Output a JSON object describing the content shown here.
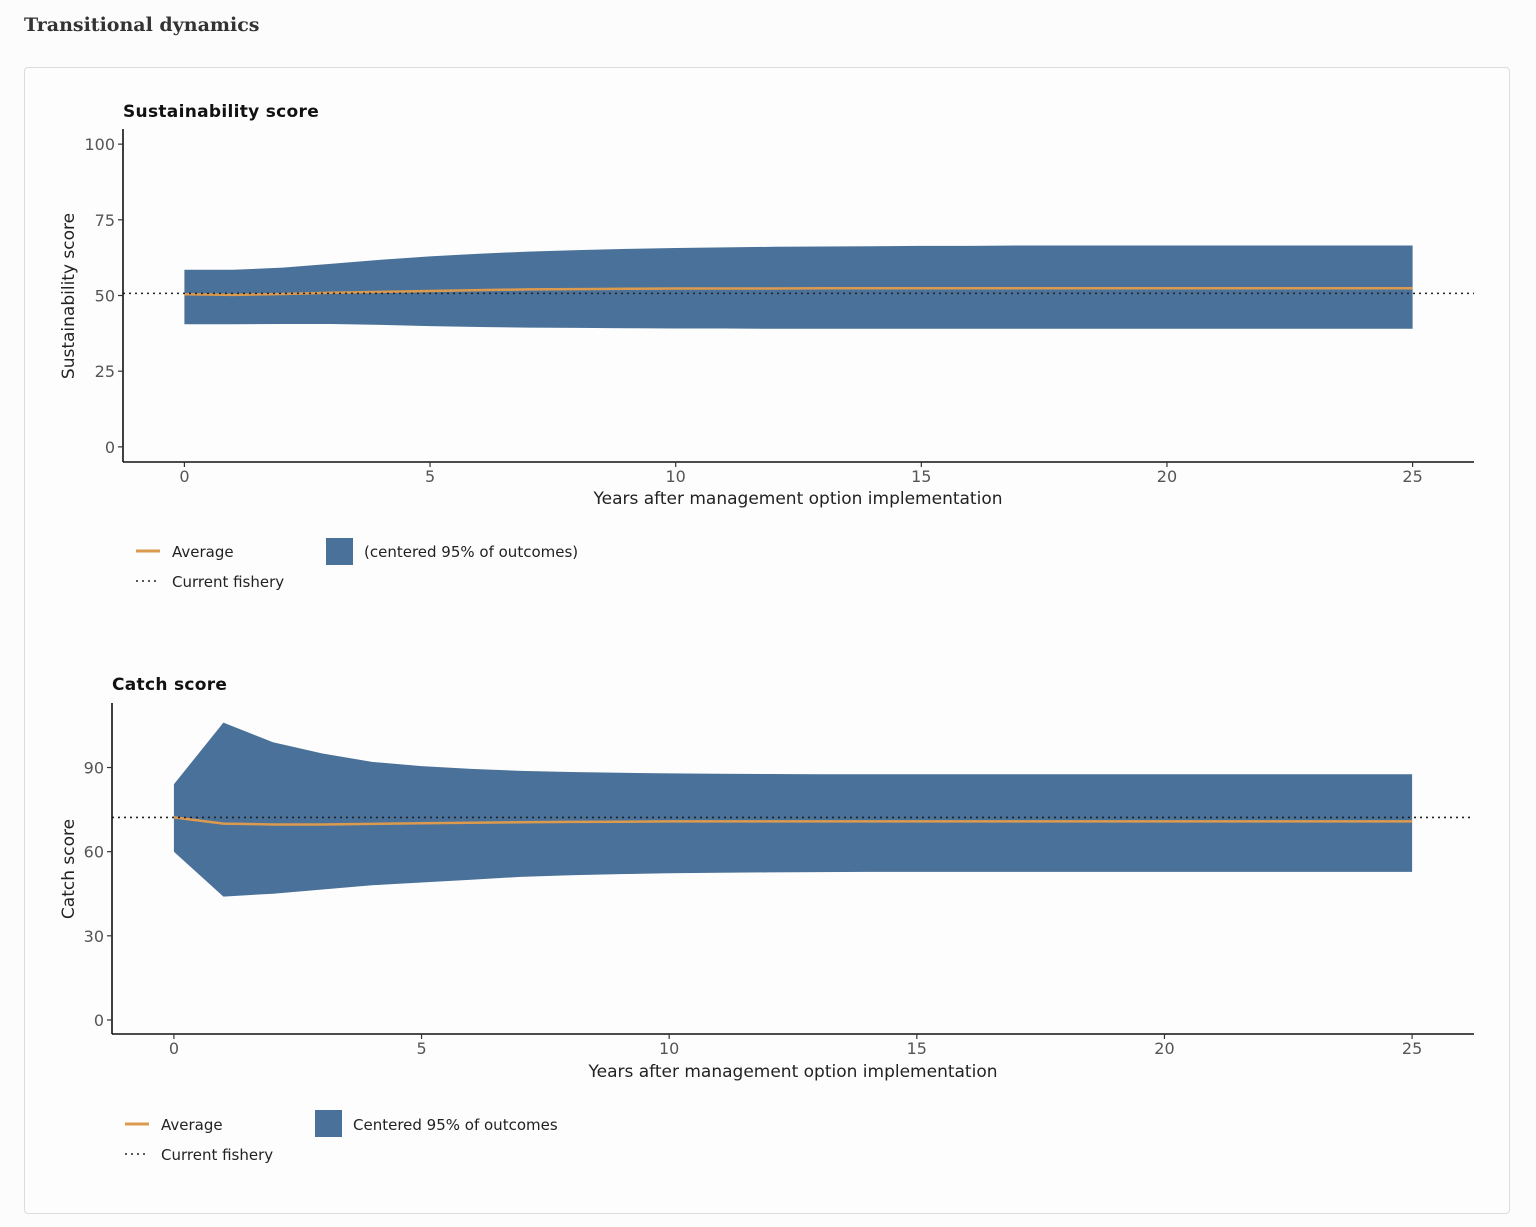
{
  "page": {
    "section_title": "Transitional dynamics"
  },
  "colors": {
    "band": "#4a7199",
    "average": "#dc9a4e",
    "current": "#222222",
    "axis": "#111111"
  },
  "chart_data": [
    {
      "type": "area",
      "title": "Sustainability score",
      "xlabel": "Years after management option implementation",
      "ylabel": "Sustainability score",
      "xlim": [
        -1.25,
        26.25
      ],
      "ylim": [
        -5,
        105
      ],
      "xticks": [
        0,
        5,
        10,
        15,
        20,
        25
      ],
      "yticks": [
        0,
        25,
        50,
        75,
        100
      ],
      "grid": false,
      "legend_position": "bottom-left",
      "x": [
        0,
        1,
        2,
        3,
        4,
        5,
        6,
        7,
        8,
        9,
        10,
        11,
        12,
        13,
        14,
        15,
        16,
        17,
        18,
        19,
        20,
        21,
        22,
        23,
        24,
        25
      ],
      "band_upper": [
        58.5,
        58.5,
        59.2,
        60.5,
        61.8,
        62.9,
        63.8,
        64.5,
        65.0,
        65.4,
        65.7,
        65.9,
        66.1,
        66.2,
        66.3,
        66.4,
        66.4,
        66.5,
        66.5,
        66.5,
        66.5,
        66.5,
        66.5,
        66.5,
        66.5,
        66.5
      ],
      "band_lower": [
        40.5,
        40.5,
        40.6,
        40.6,
        40.3,
        39.9,
        39.6,
        39.4,
        39.3,
        39.2,
        39.1,
        39.1,
        39.0,
        39.0,
        39.0,
        39.0,
        39.0,
        39.0,
        39.0,
        39.0,
        39.0,
        39.0,
        39.0,
        39.0,
        39.0,
        39.0
      ],
      "average": [
        50.4,
        50.2,
        50.5,
        50.9,
        51.2,
        51.5,
        51.8,
        52.0,
        52.1,
        52.2,
        52.3,
        52.3,
        52.3,
        52.4,
        52.4,
        52.4,
        52.4,
        52.4,
        52.4,
        52.4,
        52.4,
        52.4,
        52.4,
        52.4,
        52.4,
        52.4
      ],
      "current_fishery": 50.7,
      "series": [
        {
          "name": "Average"
        },
        {
          "name": "Current fishery"
        },
        {
          "name": "(centered 95% of outcomes)"
        }
      ]
    },
    {
      "type": "area",
      "title": "Catch score",
      "xlabel": "Years after management option implementation",
      "ylabel": "Catch score",
      "xlim": [
        -1.25,
        26.25
      ],
      "ylim": [
        -5,
        113
      ],
      "xticks": [
        0,
        5,
        10,
        15,
        20,
        25
      ],
      "yticks": [
        0,
        30,
        60,
        90
      ],
      "grid": false,
      "legend_position": "bottom-left",
      "x": [
        0,
        1,
        2,
        3,
        4,
        5,
        6,
        7,
        8,
        9,
        10,
        11,
        12,
        13,
        14,
        15,
        16,
        17,
        18,
        19,
        20,
        21,
        22,
        23,
        24,
        25
      ],
      "band_upper": [
        84,
        106,
        99,
        95,
        92,
        90.5,
        89.5,
        88.8,
        88.4,
        88.1,
        87.9,
        87.8,
        87.7,
        87.6,
        87.6,
        87.6,
        87.6,
        87.6,
        87.6,
        87.6,
        87.6,
        87.6,
        87.6,
        87.6,
        87.6,
        87.6
      ],
      "band_lower": [
        60,
        44,
        45,
        46.5,
        48,
        49,
        50,
        51,
        51.6,
        52,
        52.3,
        52.5,
        52.6,
        52.7,
        52.8,
        52.8,
        52.8,
        52.8,
        52.8,
        52.8,
        52.8,
        52.8,
        52.8,
        52.8,
        52.8,
        52.8
      ],
      "average": [
        72.2,
        70,
        69.7,
        69.7,
        69.9,
        70.1,
        70.3,
        70.5,
        70.6,
        70.7,
        70.8,
        70.8,
        70.8,
        70.8,
        70.8,
        70.8,
        70.8,
        70.8,
        70.8,
        70.8,
        70.8,
        70.8,
        70.8,
        70.8,
        70.8,
        70.8
      ],
      "current_fishery": 72.2,
      "series": [
        {
          "name": "Average"
        },
        {
          "name": "Current fishery"
        },
        {
          "name": "Centered 95% of outcomes"
        }
      ]
    }
  ]
}
